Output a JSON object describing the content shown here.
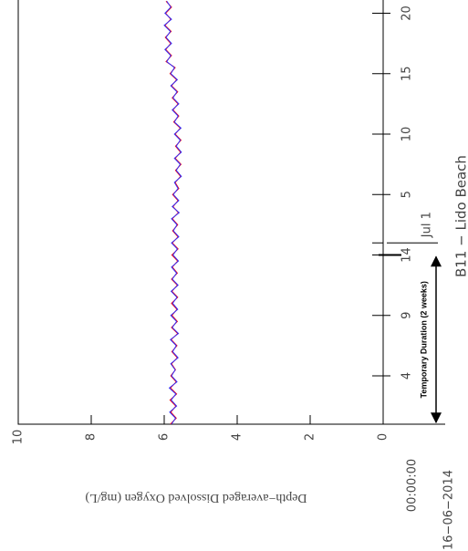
{
  "chart_data": {
    "type": "line",
    "title": "B11 − Lido Beach",
    "ylabel": "Depth−averaged Dissolved Oxygen (mg/L)",
    "start_date": "16−06−2014",
    "annotation": {
      "text": "Temporary Duration (2 weeks)",
      "start": 0,
      "end": 14
    },
    "xlim": [
      0,
      35.1
    ],
    "ylim": [
      0,
      10
    ],
    "xticks": [
      {
        "value": 0,
        "label": "00:00:00"
      },
      4,
      9,
      14,
      {
        "value": 15,
        "label": "Jul 1"
      },
      {
        "value": 19,
        "label": "5"
      },
      {
        "value": 24,
        "label": "10"
      },
      {
        "value": 29,
        "label": "15"
      },
      {
        "value": 34,
        "label": "20"
      }
    ],
    "yticks": [
      0,
      2,
      4,
      6,
      8,
      10
    ],
    "x": [
      0,
      0.5,
      1,
      1.5,
      2,
      2.5,
      3,
      3.5,
      4,
      4.5,
      5,
      5.5,
      6,
      6.5,
      7,
      7.5,
      8,
      8.5,
      9,
      9.5,
      10,
      10.5,
      11,
      11.5,
      12,
      12.5,
      13,
      13.5,
      14,
      14.5,
      15,
      15.5,
      16,
      16.5,
      17,
      17.5,
      18,
      18.5,
      19,
      19.5,
      20,
      20.5,
      21,
      21.5,
      22,
      22.5,
      23,
      23.5,
      24,
      24.5,
      25,
      25.5,
      26,
      26.5,
      27,
      27.5,
      28,
      28.5,
      29,
      29.5,
      30,
      30.5,
      31,
      31.5,
      32,
      32.5,
      33,
      33.5,
      34,
      34.5,
      35
    ],
    "series": [
      {
        "color": "#ff0000",
        "values": [
          5.83,
          5.67,
          5.82,
          5.68,
          5.84,
          5.66,
          5.83,
          5.67,
          5.82,
          5.69,
          5.8,
          5.64,
          5.79,
          5.65,
          5.81,
          5.63,
          5.8,
          5.64,
          5.79,
          5.65,
          5.8,
          5.63,
          5.79,
          5.64,
          5.8,
          5.64,
          5.78,
          5.63,
          5.79,
          5.62,
          5.78,
          5.62,
          5.77,
          5.63,
          5.78,
          5.61,
          5.76,
          5.62,
          5.77,
          5.6,
          5.7,
          5.55,
          5.69,
          5.54,
          5.7,
          5.55,
          5.69,
          5.54,
          5.7,
          5.56,
          5.74,
          5.6,
          5.76,
          5.62,
          5.78,
          5.63,
          5.8,
          5.66,
          5.84,
          5.7,
          5.95,
          5.8,
          5.96,
          5.82,
          5.97,
          5.81,
          5.98,
          5.82,
          5.96,
          5.8,
          5.95
        ]
      },
      {
        "color": "#3030ff",
        "values": [
          5.8,
          5.69,
          5.85,
          5.66,
          5.81,
          5.68,
          5.86,
          5.65,
          5.8,
          5.7,
          5.82,
          5.62,
          5.77,
          5.67,
          5.83,
          5.61,
          5.78,
          5.66,
          5.82,
          5.63,
          5.77,
          5.65,
          5.81,
          5.62,
          5.78,
          5.66,
          5.8,
          5.61,
          5.76,
          5.64,
          5.8,
          5.6,
          5.75,
          5.65,
          5.8,
          5.59,
          5.78,
          5.6,
          5.75,
          5.62,
          5.72,
          5.53,
          5.67,
          5.56,
          5.72,
          5.53,
          5.67,
          5.56,
          5.72,
          5.54,
          5.72,
          5.62,
          5.78,
          5.6,
          5.76,
          5.65,
          5.82,
          5.64,
          5.82,
          5.72,
          5.93,
          5.82,
          5.98,
          5.8,
          5.95,
          5.83,
          6.0,
          5.8,
          5.98,
          5.82,
          5.93
        ]
      }
    ]
  }
}
